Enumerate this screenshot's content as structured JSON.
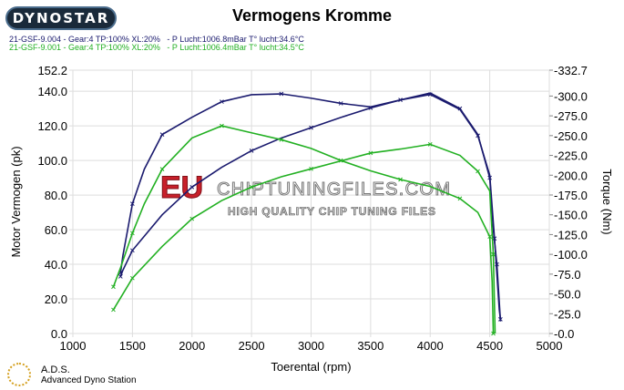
{
  "logo": "DYNOSTAR",
  "chart_data": {
    "type": "line",
    "title": "Vermogens Kromme",
    "xlabel": "Toerental (rpm)",
    "ylabel": "Motor Vermogen (pk)",
    "y2label": "Torque (Nm)",
    "xlim": [
      1000,
      5000
    ],
    "ylim": [
      0,
      152.2
    ],
    "y2lim": [
      0,
      332.7
    ],
    "xticks": [
      "1000",
      "1500",
      "2000",
      "2500",
      "3000",
      "3500",
      "4000",
      "4500",
      "5000"
    ],
    "yticks": [
      "0.0",
      "20.0",
      "40.0",
      "60.0",
      "80.0",
      "100.0",
      "120.0",
      "140.0",
      "152.2"
    ],
    "y2ticks": [
      "-0.0",
      "-25.0",
      "-50.0",
      "-75.0",
      "-100.0",
      "-125.0",
      "-150.0",
      "-175.0",
      "-200.0",
      "-225.0",
      "-250.0",
      "-275.0",
      "-300.0",
      "-332.7"
    ],
    "grid": true,
    "legend": [
      {
        "text": "21-GSF-9.004 - Gear:4 TP:100% XL:20%   - P Lucht:1006.8mBar T° lucht:34.6°C",
        "color": "#1a1a6e"
      },
      {
        "text": "21-GSF-9.001 - Gear:4 TP:100% XL:20%   - P Lucht:1006.4mBar T° lucht:34.5°C",
        "color": "#22b022"
      }
    ],
    "series": [
      {
        "axis": "left",
        "color": "#1a1a6e",
        "x": [
          1400,
          1420,
          1500,
          1600,
          1750,
          2000,
          2250,
          2500,
          2750,
          3000,
          3250,
          3500,
          3750,
          4000,
          4250,
          4400,
          4500,
          4530,
          4560,
          4590
        ],
        "y": [
          35,
          45,
          75,
          95,
          115,
          125,
          134,
          138,
          138.5,
          136,
          133,
          131,
          135,
          139,
          130,
          115,
          90,
          60,
          40,
          7
        ]
      },
      {
        "axis": "right",
        "color": "#1a1a6e",
        "x": [
          1400,
          1420,
          1500,
          1750,
          2000,
          2250,
          2500,
          2750,
          3000,
          3250,
          3500,
          3750,
          4000,
          4250,
          4400,
          4500,
          4540,
          4580,
          4590
        ],
        "y": [
          72,
          80,
          105,
          150,
          185,
          210,
          231,
          247,
          260,
          273,
          285,
          295,
          302,
          283,
          250,
          200,
          120,
          30,
          18
        ]
      },
      {
        "axis": "left",
        "color": "#22b022",
        "x": [
          1340,
          1400,
          1500,
          1600,
          1750,
          2000,
          2250,
          2500,
          2750,
          3000,
          3250,
          3500,
          3750,
          4000,
          4250,
          4400,
          4500,
          4520,
          4530
        ],
        "y": [
          27,
          38,
          58,
          75,
          95,
          113,
          120,
          116,
          112,
          107,
          100,
          94,
          89,
          85,
          78,
          70,
          56,
          30,
          0
        ]
      },
      {
        "axis": "right",
        "color": "#22b022",
        "x": [
          1340,
          1400,
          1500,
          1750,
          2000,
          2250,
          2500,
          2750,
          3000,
          3250,
          3500,
          3750,
          4000,
          4250,
          4400,
          4500,
          4530,
          4545
        ],
        "y": [
          30,
          45,
          70,
          110,
          145,
          168,
          185,
          198,
          208,
          218,
          228,
          233,
          239,
          225,
          205,
          180,
          100,
          0
        ]
      }
    ]
  },
  "watermark": {
    "eu": "EU",
    "site": "CHIPTUNINGFILES.COM",
    "tagline": "HIGH QUALITY CHIP TUNING FILES"
  },
  "footer": {
    "short": "A.D.S.",
    "long": "Advanced Dyno Station"
  }
}
